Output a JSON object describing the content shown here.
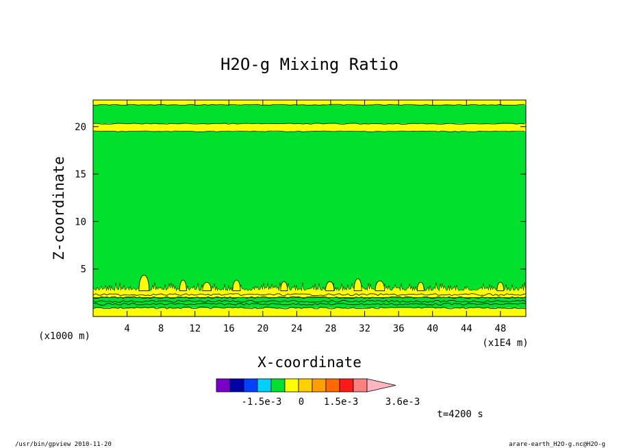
{
  "chart_data": {
    "type": "heatmap",
    "title": "H2O-g Mixing Ratio",
    "xlabel": "X-coordinate",
    "ylabel": "Z-coordinate",
    "x_unit_left": "(x1000 m)",
    "x_unit_right": "(x1E4 m)",
    "xlim": [
      0,
      51
    ],
    "ylim": [
      0,
      22.8
    ],
    "x_ticks": [
      4,
      8,
      12,
      16,
      20,
      24,
      28,
      32,
      36,
      40,
      44,
      48
    ],
    "y_ticks": [
      5,
      10,
      15,
      20
    ],
    "bands": [
      {
        "z0": 0.0,
        "z1": 0.9,
        "level": "yellow"
      },
      {
        "z0": 0.9,
        "z1": 2.0,
        "level": "green"
      },
      {
        "z0": 2.0,
        "z1": 2.7,
        "level": "yellow"
      },
      {
        "z0": 2.7,
        "z1": 19.5,
        "level": "green"
      },
      {
        "z0": 19.5,
        "z1": 20.3,
        "level": "yellow"
      },
      {
        "z0": 20.3,
        "z1": 22.3,
        "level": "green"
      },
      {
        "z0": 22.3,
        "z1": 22.8,
        "level": "yellow"
      }
    ],
    "yellow_blobs": [
      {
        "x": 6.0,
        "w": 1.2,
        "h": 4.9
      },
      {
        "x": 10.6,
        "w": 0.8,
        "h": 4.2
      },
      {
        "x": 13.4,
        "w": 1.0,
        "h": 3.9
      },
      {
        "x": 16.9,
        "w": 0.9,
        "h": 4.2
      },
      {
        "x": 22.5,
        "w": 0.8,
        "h": 4.0
      },
      {
        "x": 27.9,
        "w": 1.0,
        "h": 4.0
      },
      {
        "x": 31.2,
        "w": 0.9,
        "h": 4.4
      },
      {
        "x": 33.8,
        "w": 1.1,
        "h": 4.1
      },
      {
        "x": 38.6,
        "w": 0.8,
        "h": 3.9
      },
      {
        "x": 48.0,
        "w": 0.8,
        "h": 3.9
      }
    ],
    "colorbar": {
      "colors": [
        "#7a00c8",
        "#0000a8",
        "#0040ff",
        "#00d0ff",
        "#00e02c",
        "#ffff00",
        "#ffd000",
        "#ffa000",
        "#ff6a00",
        "#ff1a1a",
        "#ff8080",
        "#ffb6c1"
      ],
      "labels": [
        "-1.5e-3",
        "0",
        "1.5e-3",
        "3.6e-3"
      ]
    },
    "colors": {
      "yellow": "#ffff00",
      "green": "#00e02c"
    }
  },
  "time_label": "t=4200 s",
  "footer_left": "/usr/bin/gpview   2010-11-20",
  "footer_right": "arare-earth_H2O-g.nc@H2O-g"
}
